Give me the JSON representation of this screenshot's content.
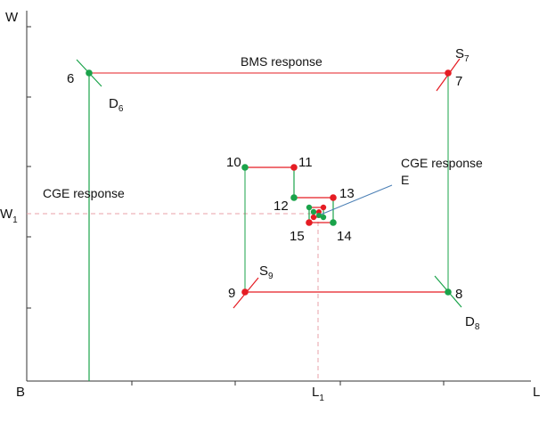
{
  "colors": {
    "axis": "#333333",
    "red": "#e51c23",
    "green": "#1aa34a",
    "dashed": "#e8a0a8",
    "leader": "#4a7fb5",
    "text": "#111111"
  },
  "axes": {
    "y_label": "W",
    "x_label": "L",
    "origin_label": "B",
    "w1_main": "W",
    "w1_sub": "1",
    "l1_main": "L",
    "l1_sub": "1"
  },
  "titles": {
    "bms": "BMS response",
    "cge_left": "CGE response",
    "cge_right": "CGE response",
    "equilibrium": "E"
  },
  "curve_labels": {
    "s7": {
      "main": "S",
      "sub": "7"
    },
    "d6": {
      "main": "D",
      "sub": "6"
    },
    "s9": {
      "main": "S",
      "sub": "9"
    },
    "d8": {
      "main": "D",
      "sub": "8"
    }
  },
  "points": {
    "p6": "6",
    "p7": "7",
    "p8": "8",
    "p9": "9",
    "p10": "10",
    "p11": "11",
    "p12": "12",
    "p13": "13",
    "p14": "14",
    "p15": "15"
  }
}
